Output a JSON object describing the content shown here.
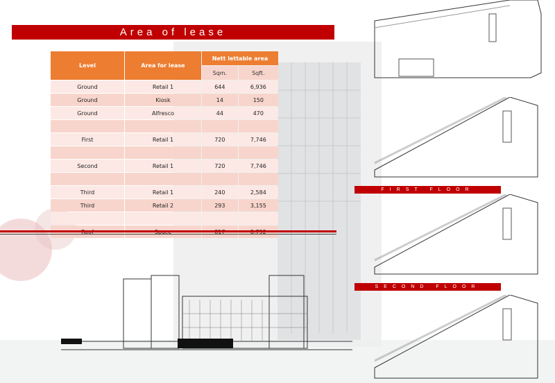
{
  "title": "Area of lease",
  "table": {
    "headers": {
      "level": "Level",
      "area": "Area for lease",
      "nett": "Nett lettable area",
      "sqm": "Sqm.",
      "sqft": "Sqft."
    },
    "rows": [
      {
        "level": "Ground",
        "area": "Retail 1",
        "sqm": "644",
        "sqft": "6,936"
      },
      {
        "level": "Ground",
        "area": "Kiosk",
        "sqm": "14",
        "sqft": "150"
      },
      {
        "level": "Ground",
        "area": "Alfresco",
        "sqm": "44",
        "sqft": "470"
      },
      {
        "level": "",
        "area": "",
        "sqm": "",
        "sqft": ""
      },
      {
        "level": "First",
        "area": "Retail 1",
        "sqm": "720",
        "sqft": "7,746"
      },
      {
        "level": "",
        "area": "",
        "sqm": "",
        "sqft": ""
      },
      {
        "level": "Second",
        "area": "Retail 1",
        "sqm": "720",
        "sqft": "7,746"
      },
      {
        "level": "",
        "area": "",
        "sqm": "",
        "sqft": ""
      },
      {
        "level": "Third",
        "area": "Retail 1",
        "sqm": "240",
        "sqft": "2,584"
      },
      {
        "level": "Third",
        "area": "Retail 2",
        "sqm": "293",
        "sqft": "3,155"
      },
      {
        "level": "",
        "area": "",
        "sqm": "",
        "sqft": ""
      },
      {
        "level": "Roof",
        "area": "Space",
        "sqm": "817",
        "sqft": "8,792"
      }
    ]
  },
  "floor_labels": {
    "first": "FIRST FLOOR",
    "second": "SECOND FLOOR"
  },
  "colors": {
    "accent": "#c00000",
    "header": "#ed7d31",
    "row_light": "#fce8e4",
    "row_dark": "#f8d5cc"
  }
}
